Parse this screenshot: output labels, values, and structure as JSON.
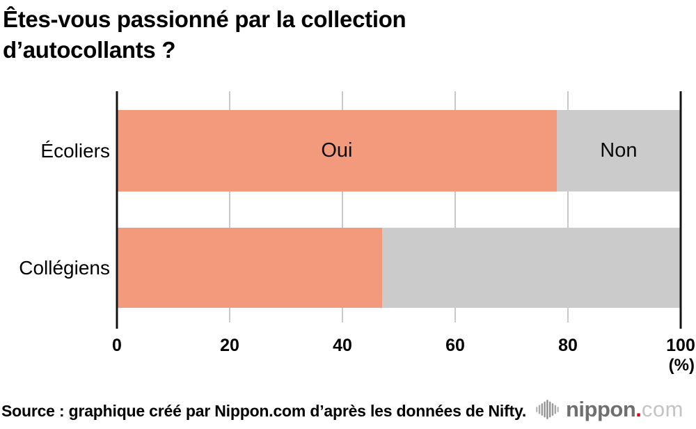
{
  "title": {
    "line1": "Êtes-vous passionné par la collection",
    "line2": "d’autocollants ?"
  },
  "chart_data": {
    "type": "bar",
    "orientation": "horizontal",
    "stacked": true,
    "title": "Êtes-vous passionné par la collection d’autocollants ?",
    "categories": [
      "Écoliers",
      "Collégiens"
    ],
    "series": [
      {
        "name": "Oui",
        "color": "#F29A7B",
        "values": [
          78,
          47
        ]
      },
      {
        "name": "Non",
        "color": "#CBCBCB",
        "values": [
          22,
          53
        ]
      }
    ],
    "xlim": [
      0,
      100
    ],
    "x_ticks": [
      0,
      20,
      40,
      60,
      80,
      100
    ],
    "x_unit": "(%)",
    "grid": true,
    "legend_position": "inside-first-bar"
  },
  "footer": {
    "source": "Source : graphique créé par Nippon.com d’après les données de Nifty.",
    "logo": {
      "name": "nippon",
      "dot": ".",
      "tld": "com",
      "icon": "waveform-bars-icon",
      "name_color": "#6f6f6f",
      "dot_color": "#e60012",
      "tld_color": "#c4c4c4"
    }
  },
  "colors": {
    "oui": "#F29A7B",
    "non": "#CBCBCB",
    "gridline": "#c9c9c9",
    "axis": "#141414",
    "background": "#ffffff"
  }
}
